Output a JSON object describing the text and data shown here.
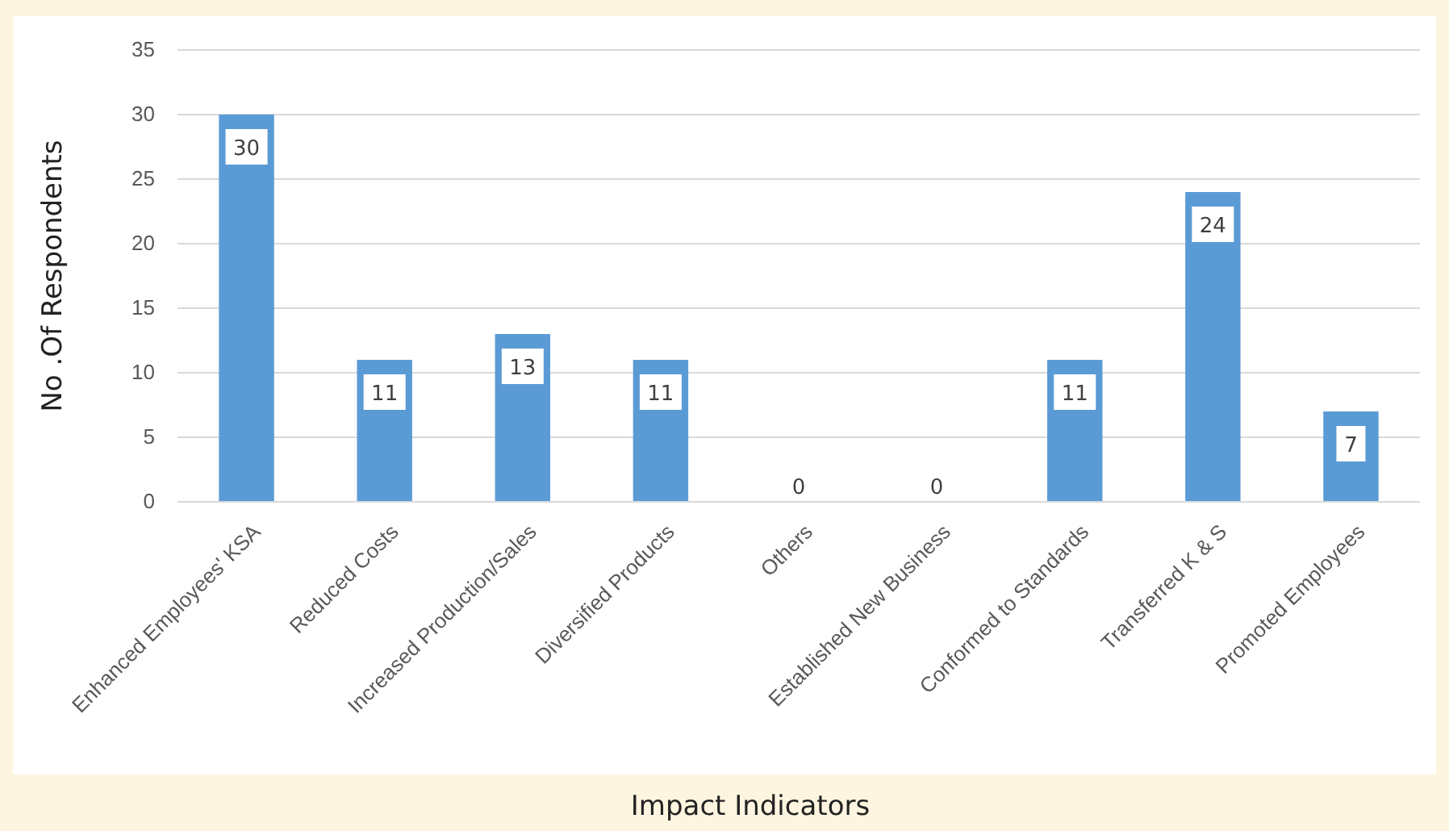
{
  "chart_data": {
    "type": "bar",
    "xlabel": "Impact Indicators",
    "ylabel": "No .Of Respondents",
    "categories": [
      "Enhanced Employees' KSA",
      "Reduced Costs",
      "Increased Production/Sales",
      "Diversified Products",
      "Others",
      "Established New Business",
      "Conformed to Standards",
      "Transferred K & S",
      "Promoted Employees"
    ],
    "values": [
      30,
      11,
      13,
      11,
      0,
      0,
      11,
      24,
      7
    ],
    "color": "#5b9bd5",
    "ylim": [
      0,
      35
    ],
    "yticks": [
      0,
      5,
      10,
      15,
      20,
      25,
      30,
      35
    ],
    "grid": "y",
    "data_labels": true
  }
}
